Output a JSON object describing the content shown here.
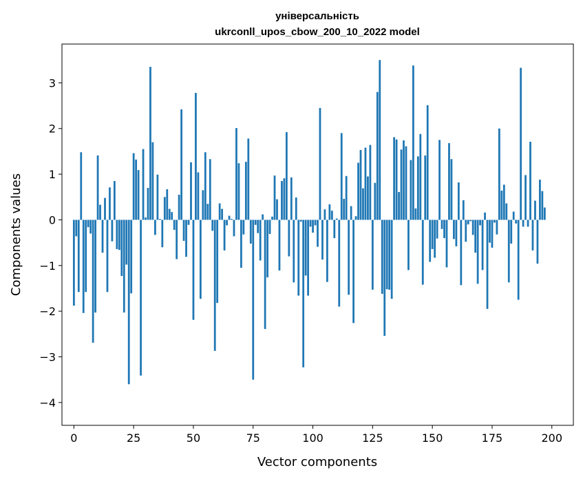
{
  "chart_data": {
    "type": "bar",
    "title": "універсальність",
    "subtitle": "ukrconll_upos_cbow_200_10_2022 model",
    "xlabel": "Vector components",
    "ylabel": "Components values",
    "xlim": [
      -5,
      209
    ],
    "ylim": [
      -4.5,
      3.85
    ],
    "xticks": [
      0,
      25,
      50,
      75,
      100,
      125,
      150,
      175,
      200
    ],
    "yticks": [
      -4,
      -3,
      -2,
      -1,
      0,
      1,
      2,
      3
    ],
    "grid": false,
    "color": "#1f77b4",
    "values": [
      -1.88,
      -0.36,
      -1.58,
      1.48,
      -2.04,
      -1.58,
      -0.16,
      -0.3,
      -2.69,
      -2.03,
      1.41,
      0.33,
      -0.72,
      0.48,
      -1.58,
      0.71,
      -0.47,
      0.85,
      -0.64,
      -0.66,
      -1.23,
      -2.03,
      -0.98,
      -3.6,
      -1.61,
      1.46,
      1.32,
      1.09,
      -3.41,
      1.55,
      0.05,
      0.7,
      3.35,
      1.7,
      -0.33,
      0.99,
      0.02,
      -0.6,
      0.5,
      0.67,
      0.24,
      0.17,
      -0.22,
      -0.86,
      0.55,
      2.42,
      -0.46,
      -0.81,
      -0.11,
      1.26,
      -2.19,
      2.78,
      1.04,
      -1.73,
      0.65,
      1.48,
      0.35,
      1.33,
      -0.24,
      -2.87,
      -1.82,
      0.36,
      0.24,
      -0.67,
      -0.12,
      0.09,
      0.02,
      -0.36,
      2.01,
      1.24,
      -1.05,
      -0.32,
      1.27,
      1.78,
      -0.52,
      -3.5,
      -0.11,
      -0.29,
      -0.89,
      0.12,
      -2.39,
      -1.26,
      -0.31,
      0.07,
      0.97,
      0.45,
      -1.11,
      0.85,
      0.91,
      1.92,
      -0.8,
      0.93,
      -1.37,
      0.49,
      -1.66,
      -0.04,
      -3.23,
      -1.22,
      -1.66,
      -0.15,
      -0.28,
      -0.12,
      -0.59,
      2.45,
      -0.87,
      0.23,
      -1.36,
      0.34,
      0.2,
      -0.4,
      0.03,
      -1.9,
      1.9,
      0.46,
      0.96,
      -1.64,
      0.3,
      -2.26,
      0.08,
      1.25,
      1.53,
      0.69,
      1.58,
      0.95,
      1.64,
      -1.53,
      0.81,
      2.8,
      3.5,
      -1.62,
      -2.54,
      -1.52,
      -1.53,
      -1.73,
      1.81,
      1.76,
      0.61,
      1.54,
      1.74,
      1.61,
      -1.1,
      1.31,
      3.38,
      0.25,
      1.39,
      1.88,
      -1.42,
      1.41,
      2.51,
      -0.92,
      -0.64,
      -0.83,
      -0.41,
      1.75,
      -0.2,
      -0.4,
      -1.04,
      1.68,
      1.33,
      -0.42,
      -0.58,
      0.82,
      -1.43,
      0.43,
      -0.48,
      -0.1,
      -0.03,
      -0.33,
      -0.72,
      -1.4,
      -0.12,
      -1.1,
      0.16,
      -1.95,
      -0.5,
      -0.61,
      -0.06,
      -0.32,
      2.0,
      0.64,
      0.77,
      0.36,
      -1.37,
      -0.52,
      0.18,
      -0.08,
      -1.75,
      3.33,
      -0.15,
      0.98,
      -0.15,
      1.71,
      -0.67,
      0.42,
      -0.96,
      0.88,
      0.63,
      0.27
    ]
  }
}
